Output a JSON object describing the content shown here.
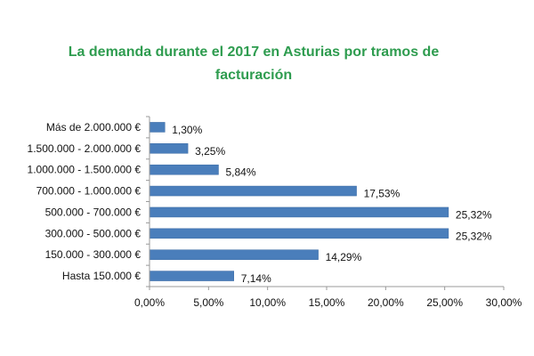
{
  "chart_data": {
    "type": "bar",
    "orientation": "horizontal",
    "title": "La demanda durante el 2017 en Asturias por tramos de facturación",
    "categories": [
      "Más de 2.000.000 €",
      "1.500.000 - 2.000.000 €",
      "1.000.000 - 1.500.000 €",
      "700.000 - 1.000.000 €",
      "500.000 - 700.000 €",
      "300.000 - 500.000 €",
      "150.000 - 300.000 €",
      "Hasta 150.000 €"
    ],
    "values": [
      1.3,
      3.25,
      5.84,
      17.53,
      25.32,
      25.32,
      14.29,
      7.14
    ],
    "data_labels": [
      "1,30%",
      "3,25%",
      "5,84%",
      "17,53%",
      "25,32%",
      "25,32%",
      "14,29%",
      "7,14%"
    ],
    "x_ticks": [
      0,
      5,
      10,
      15,
      20,
      25,
      30
    ],
    "x_tick_labels": [
      "0,00%",
      "5,00%",
      "10,00%",
      "15,00%",
      "20,00%",
      "25,00%",
      "30,00%"
    ],
    "xlim": [
      0,
      30
    ],
    "xlabel": "",
    "ylabel": "",
    "grid": false,
    "legend": "none",
    "colors": {
      "title": "#2e9c4f",
      "bar": "#4a7ebb",
      "bar_edge": "#3a6aa3",
      "axis": "#9a9a9a"
    }
  }
}
